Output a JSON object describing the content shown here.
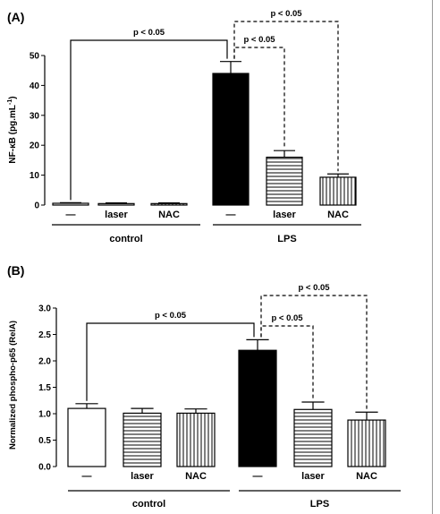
{
  "chart_data": [
    {
      "type": "bar",
      "panel_label": "(A)",
      "ylabel_main": "NF-κB (pg.mL",
      "ylabel_sup": "-1",
      "ylabel_tail": ")",
      "ylim": [
        0,
        50
      ],
      "yticks": [
        "0",
        "10",
        "20",
        "30",
        "40",
        "50"
      ],
      "categories": [
        "—",
        "laser",
        "NAC",
        "—",
        "laser",
        "NAC"
      ],
      "values": [
        0.6,
        0.5,
        0.5,
        44,
        16,
        9.3
      ],
      "errors": [
        0.2,
        0.2,
        0.2,
        4,
        2.2,
        1.1
      ],
      "fills": [
        "open",
        "hstripe",
        "vstripe",
        "solid",
        "hstripe",
        "vstripe"
      ],
      "groups": [
        {
          "label": "control",
          "from": 0,
          "to": 2
        },
        {
          "label": "LPS",
          "from": 3,
          "to": 5
        }
      ],
      "annotations": [
        {
          "text": "p < 0.05",
          "from": 0,
          "to": 3,
          "style": "solid"
        },
        {
          "text": "p < 0.05",
          "from": 3,
          "to": 4,
          "style": "dashed"
        },
        {
          "text": "p < 0.05",
          "from": 3,
          "to": 5,
          "style": "dashed"
        }
      ]
    },
    {
      "type": "bar",
      "panel_label": "(B)",
      "ylabel_main": "Normalized phospho-p65 (RelA)",
      "ylim": [
        0,
        3
      ],
      "yticks": [
        "0.0",
        "0.5",
        "1.0",
        "1.5",
        "2.0",
        "2.5",
        "3.0"
      ],
      "categories": [
        "—",
        "laser",
        "NAC",
        "—",
        "laser",
        "NAC"
      ],
      "values": [
        1.1,
        1.01,
        1.01,
        2.2,
        1.08,
        0.88
      ],
      "errors": [
        0.09,
        0.09,
        0.08,
        0.2,
        0.14,
        0.15
      ],
      "fills": [
        "open",
        "hstripe",
        "vstripe",
        "solid",
        "hstripe",
        "vstripe"
      ],
      "groups": [
        {
          "label": "control",
          "from": 0,
          "to": 2
        },
        {
          "label": "LPS",
          "from": 3,
          "to": 5
        }
      ],
      "annotations": [
        {
          "text": "p < 0.05",
          "from": 0,
          "to": 3,
          "style": "solid"
        },
        {
          "text": "p < 0.05",
          "from": 3,
          "to": 4,
          "style": "dashed"
        },
        {
          "text": "p < 0.05",
          "from": 3,
          "to": 5,
          "style": "dashed"
        }
      ]
    }
  ]
}
